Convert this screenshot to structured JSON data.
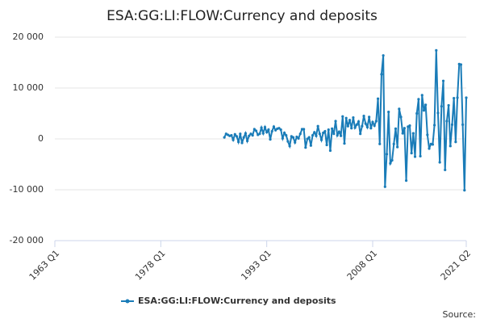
{
  "chart_data": {
    "type": "line",
    "title": "ESA:GG:LI:FLOW:Currency and deposits",
    "source_label": "Source:",
    "categories": [
      "1963 Q1",
      null,
      null,
      null,
      null,
      null,
      null,
      null,
      null,
      null,
      null,
      null,
      null,
      null,
      null,
      null,
      null,
      null,
      null,
      null,
      null,
      null,
      null,
      null,
      null,
      null,
      null,
      null,
      null,
      null,
      null,
      null,
      null,
      null,
      null,
      null,
      null,
      null,
      null,
      null,
      null,
      null,
      null,
      null,
      null,
      null,
      null,
      null,
      null,
      null,
      null,
      null,
      null,
      null,
      null,
      null,
      null,
      null,
      null,
      null,
      "1978 Q1",
      null,
      null,
      null,
      null,
      null,
      null,
      null,
      null,
      null,
      null,
      null,
      null,
      null,
      null,
      null,
      null,
      null,
      null,
      null,
      null,
      null,
      null,
      null,
      null,
      null,
      null,
      null,
      null,
      null,
      null,
      null,
      null,
      null,
      null,
      null,
      null,
      null,
      null,
      null,
      null,
      null,
      null,
      null,
      null,
      null,
      null,
      null,
      null,
      null,
      null,
      null,
      null,
      null,
      null,
      null,
      null,
      null,
      null,
      null,
      "1993 Q1",
      null,
      null,
      null,
      null,
      null,
      null,
      null,
      null,
      null,
      null,
      null,
      null,
      null,
      null,
      null,
      null,
      null,
      null,
      null,
      null,
      null,
      null,
      null,
      null,
      null,
      null,
      null,
      null,
      null,
      null,
      null,
      null,
      null,
      null,
      null,
      null,
      null,
      null,
      null,
      null,
      null,
      null,
      null,
      null,
      null,
      null,
      null,
      null,
      null,
      null,
      null,
      null,
      null,
      null,
      null,
      null,
      null,
      null,
      null,
      "2008 Q1",
      null,
      null,
      null,
      null,
      null,
      null,
      null,
      null,
      null,
      null,
      null,
      null,
      null,
      null,
      null,
      null,
      null,
      null,
      null,
      null,
      null,
      null,
      null,
      null,
      null,
      null,
      null,
      null,
      null,
      null,
      null,
      null,
      null,
      null,
      null,
      null,
      null,
      null,
      null,
      null,
      null,
      null,
      null,
      null,
      null,
      null,
      null,
      null,
      null,
      null,
      null,
      null,
      "2021 Q2"
    ],
    "series": [
      {
        "name": "ESA:GG:LI:FLOW:Currency and deposits",
        "color": "#1a7cb8",
        "values": [
          null,
          null,
          null,
          null,
          null,
          null,
          null,
          null,
          null,
          null,
          null,
          null,
          null,
          null,
          null,
          null,
          null,
          null,
          null,
          null,
          null,
          null,
          null,
          null,
          null,
          null,
          null,
          null,
          null,
          null,
          null,
          null,
          null,
          null,
          null,
          null,
          null,
          null,
          null,
          null,
          null,
          null,
          null,
          null,
          null,
          null,
          null,
          null,
          null,
          null,
          null,
          null,
          null,
          null,
          null,
          null,
          null,
          null,
          null,
          null,
          null,
          null,
          null,
          null,
          null,
          null,
          null,
          null,
          null,
          null,
          null,
          null,
          null,
          null,
          null,
          null,
          null,
          null,
          null,
          null,
          null,
          null,
          null,
          null,
          null,
          null,
          null,
          null,
          null,
          null,
          null,
          null,
          null,
          null,
          null,
          null,
          300,
          1000,
          800,
          600,
          700,
          -200,
          900,
          500,
          -600,
          1000,
          -800,
          300,
          1100,
          -400,
          600,
          1000,
          700,
          1900,
          1600,
          800,
          1000,
          2200,
          1100,
          2300,
          1300,
          1800,
          -100,
          1500,
          2400,
          1700,
          2000,
          2100,
          1800,
          100,
          1200,
          700,
          -500,
          -1400,
          500,
          300,
          -700,
          400,
          100,
          1000,
          1900,
          1900,
          -1700,
          0,
          300,
          -1300,
          700,
          1300,
          600,
          2500,
          1000,
          -200,
          1200,
          1500,
          -1200,
          1800,
          -2300,
          2000,
          1000,
          3500,
          700,
          1400,
          600,
          4400,
          -900,
          4100,
          2500,
          3700,
          2100,
          4200,
          2200,
          2800,
          3400,
          1000,
          2500,
          4500,
          3000,
          2300,
          4300,
          2100,
          3300,
          2600,
          3500,
          7900,
          -1000,
          12700,
          16400,
          -9400,
          -3000,
          5300,
          -4800,
          -4200,
          -1000,
          2000,
          -1600,
          5900,
          4300,
          1100,
          2100,
          -8200,
          2400,
          2600,
          -2800,
          1100,
          -3500,
          5000,
          7800,
          -3400,
          8600,
          5600,
          6700,
          800,
          -1900,
          -1000,
          -1100,
          2700,
          17400,
          5100,
          -4600,
          6400,
          11400,
          -6100,
          3500,
          6600,
          -1400,
          2800,
          8000,
          -600,
          8100,
          14700,
          14600,
          2800,
          -10100,
          8100
        ]
      }
    ],
    "ylim": [
      -20000,
      20000
    ],
    "yticks": [
      {
        "value": -20000,
        "label": "-20 000"
      },
      {
        "value": -10000,
        "label": "-10 000"
      },
      0,
      {
        "value": 10000,
        "label": "10 000"
      },
      {
        "value": 20000,
        "label": "20 000"
      }
    ],
    "grid": true
  }
}
